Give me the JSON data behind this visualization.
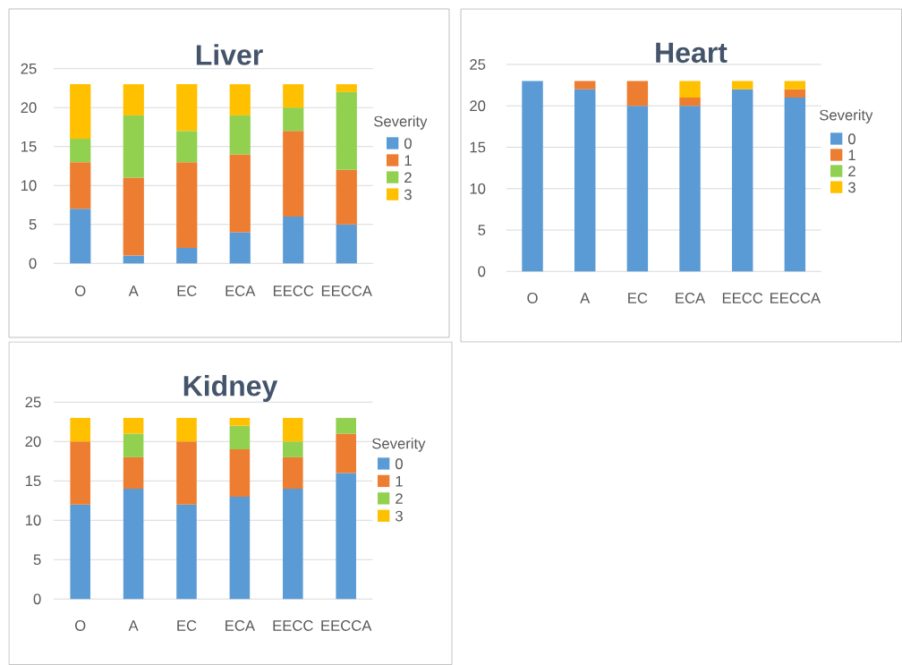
{
  "chart_data": [
    {
      "type": "bar",
      "title": "Liver",
      "categories": [
        "O",
        "A",
        "EC",
        "ECA",
        "EECC",
        "EECCA"
      ],
      "stacked": true,
      "series": [
        {
          "name": "0",
          "color": "#5b9bd5",
          "values": [
            7,
            1,
            2,
            4,
            6,
            5
          ]
        },
        {
          "name": "1",
          "color": "#ed7d31",
          "values": [
            6,
            10,
            11,
            10,
            11,
            7
          ]
        },
        {
          "name": "2",
          "color": "#92d050",
          "values": [
            3,
            8,
            4,
            5,
            3,
            10
          ]
        },
        {
          "name": "3",
          "color": "#ffc000",
          "values": [
            7,
            4,
            6,
            4,
            3,
            1
          ]
        }
      ],
      "ylim": [
        0,
        25
      ],
      "yticks": [
        0,
        5,
        10,
        15,
        20,
        25
      ],
      "grid": "y",
      "legend": "right",
      "legend_title": "Severity"
    },
    {
      "type": "bar",
      "title": "Heart",
      "categories": [
        "O",
        "A",
        "EC",
        "ECA",
        "EECC",
        "EECCA"
      ],
      "stacked": true,
      "series": [
        {
          "name": "0",
          "color": "#5b9bd5",
          "values": [
            23,
            22,
            20,
            20,
            22,
            21
          ]
        },
        {
          "name": "1",
          "color": "#ed7d31",
          "values": [
            0,
            1,
            3,
            1,
            0,
            1
          ]
        },
        {
          "name": "2",
          "color": "#92d050",
          "values": [
            0,
            0,
            0,
            0,
            0,
            0
          ]
        },
        {
          "name": "3",
          "color": "#ffc000",
          "values": [
            0,
            0,
            0,
            2,
            1,
            1
          ]
        }
      ],
      "ylim": [
        0,
        25
      ],
      "yticks": [
        0,
        5,
        10,
        15,
        20,
        25
      ],
      "grid": "y",
      "legend": "right",
      "legend_title": "Severity"
    },
    {
      "type": "bar",
      "title": "Kidney",
      "categories": [
        "O",
        "A",
        "EC",
        "ECA",
        "EECC",
        "EECCA"
      ],
      "stacked": true,
      "series": [
        {
          "name": "0",
          "color": "#5b9bd5",
          "values": [
            12,
            14,
            12,
            13,
            14,
            16
          ]
        },
        {
          "name": "1",
          "color": "#ed7d31",
          "values": [
            8,
            4,
            8,
            6,
            4,
            5
          ]
        },
        {
          "name": "2",
          "color": "#92d050",
          "values": [
            0,
            3,
            0,
            3,
            2,
            2
          ]
        },
        {
          "name": "3",
          "color": "#ffc000",
          "values": [
            3,
            2,
            3,
            1,
            3,
            0
          ]
        }
      ],
      "ylim": [
        0,
        25
      ],
      "yticks": [
        0,
        5,
        10,
        15,
        20,
        25
      ],
      "grid": "y",
      "legend": "right",
      "legend_title": "Severity"
    }
  ]
}
